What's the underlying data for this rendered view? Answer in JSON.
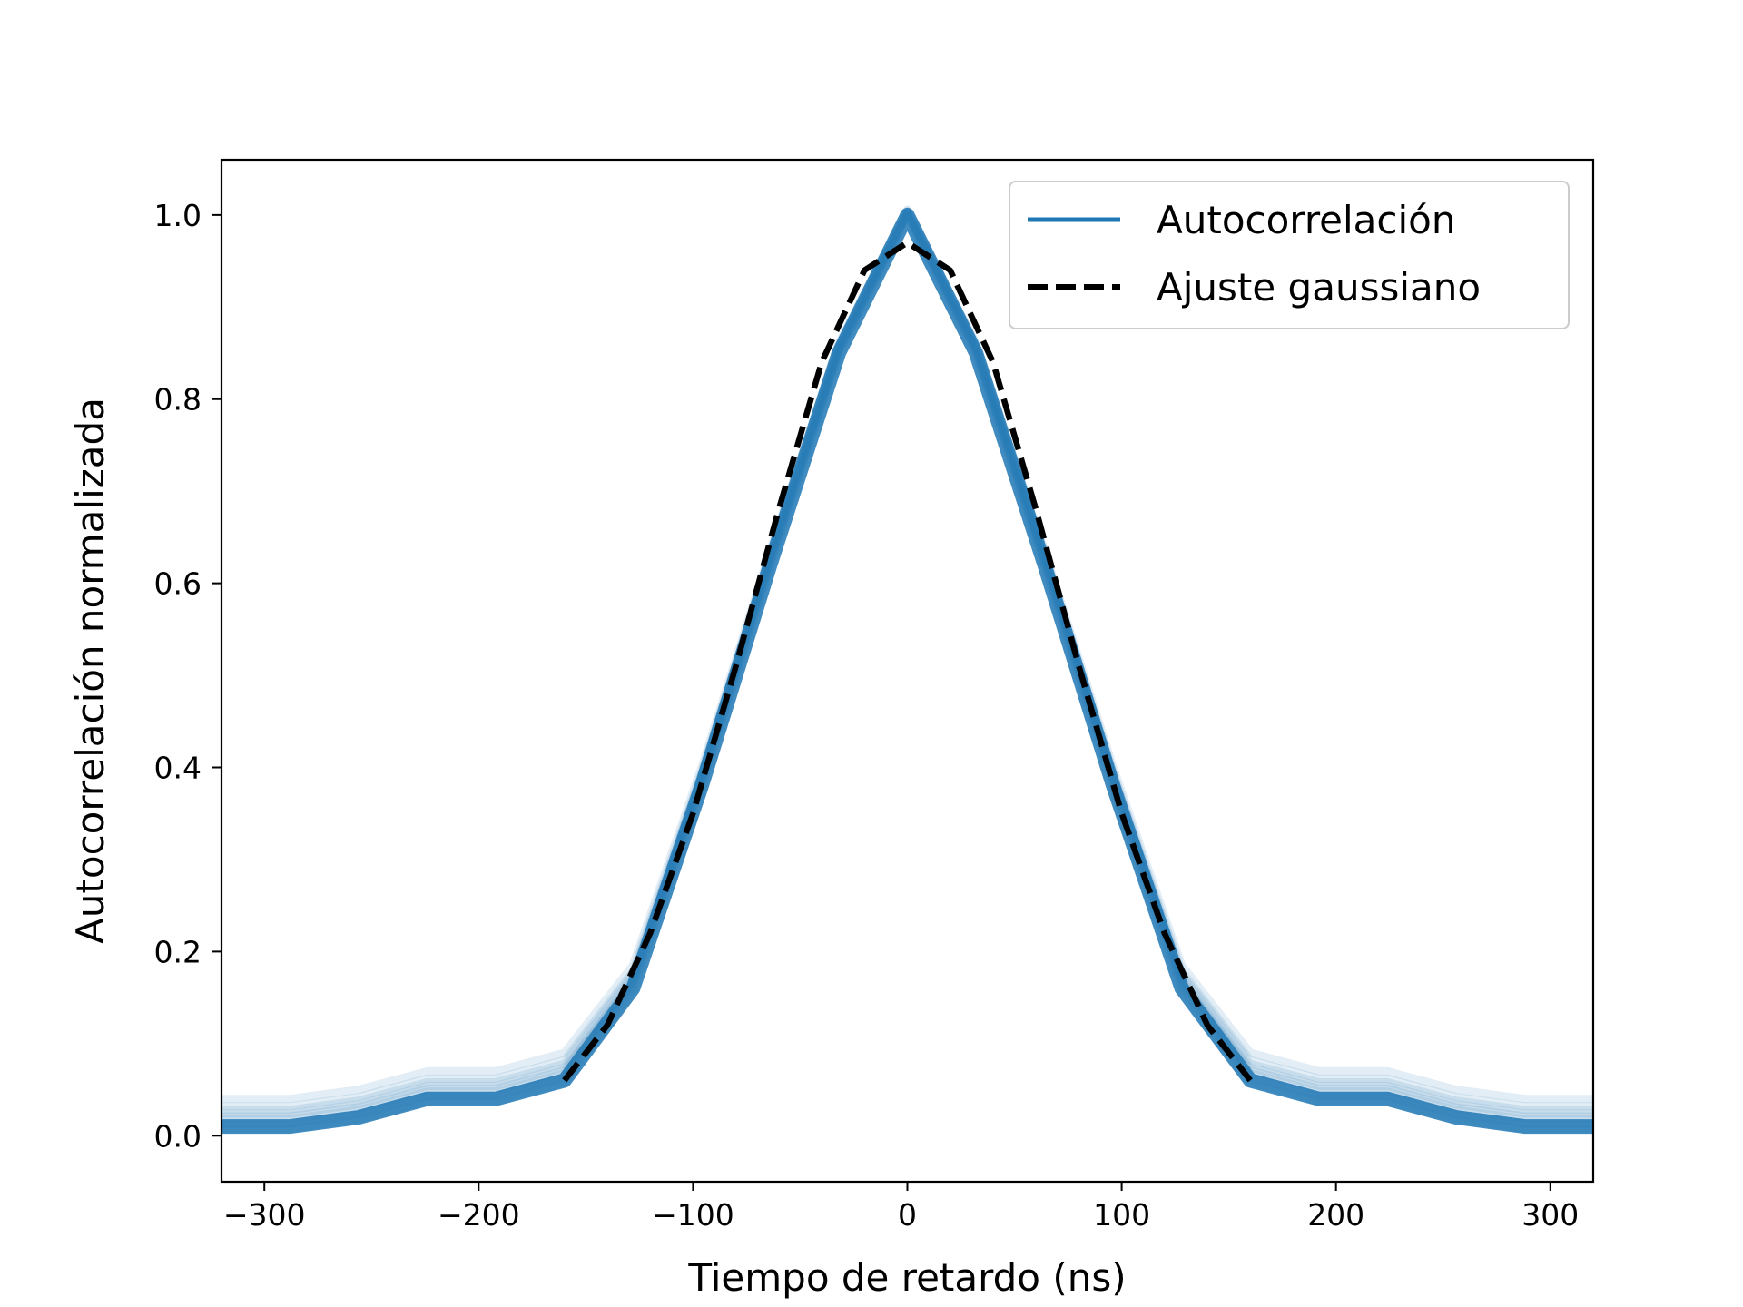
{
  "chart_data": {
    "type": "line",
    "title": "",
    "xlabel": "Tiempo de retardo (ns)",
    "ylabel": "Autocorrelación normalizada",
    "xlim": [
      -320,
      320
    ],
    "ylim": [
      -0.05,
      1.06
    ],
    "xticks": [
      -300,
      -200,
      -100,
      0,
      100,
      200,
      300
    ],
    "xtick_labels": [
      "−300",
      "−200",
      "−100",
      "0",
      "100",
      "200",
      "300"
    ],
    "yticks": [
      0.0,
      0.2,
      0.4,
      0.6,
      0.8,
      1.0
    ],
    "ytick_labels": [
      "0.0",
      "0.2",
      "0.4",
      "0.6",
      "0.8",
      "1.0"
    ],
    "grid": false,
    "legend": {
      "placement": "top-right",
      "entries": [
        {
          "label": "Autocorrelación",
          "style": "solid",
          "color": "#1f77b4"
        },
        {
          "label": "Ajuste gaussiano",
          "style": "dashed",
          "color": "#000000"
        }
      ]
    },
    "series": [
      {
        "name": "Autocorrelación",
        "color": "#1f77b4",
        "x": [
          -320,
          -288,
          -256,
          -224,
          -192,
          -160,
          -128,
          -96,
          -64,
          -32,
          0,
          32,
          64,
          96,
          128,
          160,
          192,
          224,
          256,
          288,
          320
        ],
        "y": [
          0.01,
          0.01,
          0.02,
          0.04,
          0.04,
          0.06,
          0.16,
          0.38,
          0.62,
          0.85,
          1.0,
          0.85,
          0.62,
          0.38,
          0.16,
          0.06,
          0.04,
          0.04,
          0.02,
          0.01,
          0.01
        ]
      },
      {
        "name": "Ajuste gaussiano",
        "color": "#000000",
        "x": [
          -160,
          -140,
          -120,
          -100,
          -80,
          -60,
          -40,
          -20,
          0,
          20,
          40,
          60,
          80,
          100,
          120,
          140,
          160
        ],
        "y": [
          0.06,
          0.12,
          0.22,
          0.35,
          0.51,
          0.68,
          0.84,
          0.94,
          0.97,
          0.94,
          0.84,
          0.68,
          0.51,
          0.35,
          0.22,
          0.12,
          0.06
        ]
      }
    ]
  }
}
